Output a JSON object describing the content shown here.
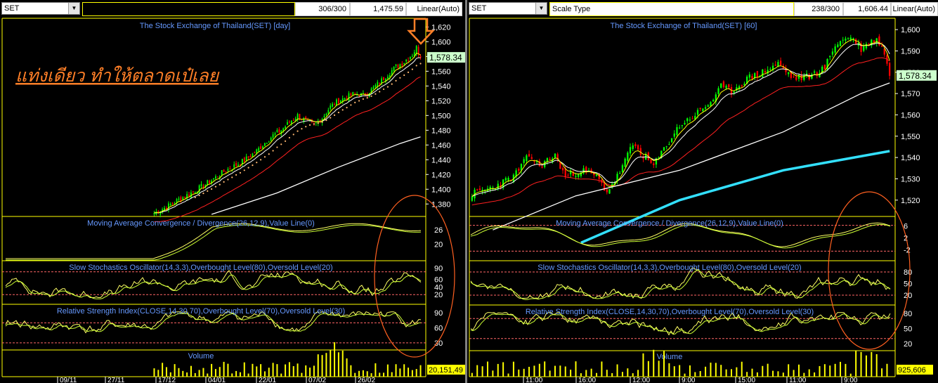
{
  "left": {
    "symbol": "SET",
    "records": "306/300",
    "last_value": "1,475.59",
    "scale": "Linear(Auto)",
    "title": "The Stock Exchange of Thailand(SET) [day]",
    "annotation": "แท่งเดียว ทำให้ตลาดเป๋เลย",
    "price_label": "1,578.34",
    "volume_label": "20,151,49",
    "macd_title": "Moving Average Convergence / Divergence(26,12,9),Value Line(0)",
    "stoch_title": "Slow Stochastics Oscillator(14,3,3),Overbought Level(80),Oversold Level(20)",
    "rsi_title": "Relative Strength Index(CLOSE,14,30,70),Overbought Level(70),Oversold Level(30)",
    "volume_title": "Volume",
    "x_labels": [
      "09/11",
      "27/11",
      "17/12",
      "04/01",
      "22/01",
      "07/02",
      "26/02"
    ]
  },
  "right": {
    "symbol": "SET",
    "scale_type": "Scale Type",
    "records": "238/300",
    "last_value": "1,606.44",
    "scale": "Linear(Auto)",
    "title": "The Stock Exchange of Thailand(SET) [60]",
    "price_label": "1,578.34",
    "volume_label": "925,606",
    "macd_title": "Moving Average Convergence / Divergence(26,12,9),Value Line(0)",
    "stoch_title": "Slow Stochastics Oscillator(14,3,3),Overbought Level(80),Oversold Level(20)",
    "rsi_title": "Relative Strength Index(CLOSE,14,30,70),Overbought Level(70),Oversold Level(30)",
    "volume_title": "Volume",
    "x_labels": [
      "11:00",
      "16:00",
      "12:00",
      "9:00",
      "15:00",
      "11:00",
      "9:00"
    ]
  },
  "colors": {
    "up_candle": "#00ff00",
    "down_candle": "#ff0000",
    "ma_short": "#ffff00",
    "ma_mid": "#ffffff",
    "ma_long_red": "#ff2020",
    "ma_200": "#ffffff",
    "ma_cyan": "#33e0ff",
    "grid_frame": "#ffff00",
    "title_text": "#6699ff",
    "axis_text": "#ffffff",
    "price_tag_bg": "#ccffcc",
    "volume_tag_bg": "#ffff00",
    "annotation": "#ff7f27",
    "oscillator_line": "#ffff66",
    "signal_line": "#ccff33",
    "level_line": "#ff6666"
  },
  "chart_data": [
    {
      "panel": "left",
      "type": "candlestick",
      "title": "The Stock Exchange of Thailand(SET) [day]",
      "x_labels": [
        "09/11",
        "27/11",
        "17/12",
        "04/01",
        "22/01",
        "07/02",
        "26/02"
      ],
      "y_ticks": [
        1380,
        1400,
        1420,
        1440,
        1460,
        1480,
        1500,
        1520,
        1540,
        1560,
        1580,
        1600,
        1620
      ],
      "ylim": [
        1365,
        1628
      ],
      "last_price": 1578.34,
      "close_path": [
        [
          0,
          1368
        ],
        [
          6,
          1376
        ],
        [
          12,
          1386
        ],
        [
          18,
          1395
        ],
        [
          24,
          1405
        ],
        [
          30,
          1416
        ],
        [
          34,
          1424
        ],
        [
          38,
          1430
        ],
        [
          42,
          1436
        ],
        [
          46,
          1443
        ],
        [
          50,
          1452
        ],
        [
          54,
          1463
        ],
        [
          58,
          1473
        ],
        [
          62,
          1480
        ],
        [
          66,
          1491
        ],
        [
          70,
          1500
        ],
        [
          74,
          1492
        ],
        [
          78,
          1487
        ],
        [
          82,
          1497
        ],
        [
          86,
          1512
        ],
        [
          90,
          1520
        ],
        [
          94,
          1525
        ],
        [
          98,
          1530
        ],
        [
          102,
          1527
        ],
        [
          106,
          1535
        ],
        [
          110,
          1545
        ],
        [
          114,
          1556
        ],
        [
          118,
          1566
        ],
        [
          122,
          1573
        ],
        [
          126,
          1583
        ],
        [
          128,
          1592
        ],
        [
          130,
          1578
        ]
      ],
      "n_bars": 131,
      "moving_averages": [
        "yellow",
        "white",
        "red",
        "white-long",
        "orange-dotted"
      ],
      "indicators": {
        "macd": {
          "y_ticks": [
            20,
            26
          ]
        },
        "stochastic": {
          "y_ticks": [
            20,
            40,
            60,
            90
          ],
          "overbought": 80,
          "oversold": 20
        },
        "rsi": {
          "y_ticks": [
            30,
            60,
            90
          ],
          "overbought": 70,
          "oversold": 30
        },
        "volume": {
          "last": "20,151,49"
        }
      }
    },
    {
      "panel": "right",
      "type": "candlestick",
      "title": "The Stock Exchange of Thailand(SET) [60]",
      "x_labels": [
        "11:00",
        "16:00",
        "12:00",
        "9:00",
        "15:00",
        "11:00",
        "9:00"
      ],
      "y_ticks": [
        1520,
        1530,
        1540,
        1550,
        1560,
        1570,
        1580,
        1590,
        1600
      ],
      "ylim": [
        1513,
        1604
      ],
      "last_price": 1578.34,
      "close_path": [
        [
          0,
          1523
        ],
        [
          8,
          1526
        ],
        [
          16,
          1531
        ],
        [
          22,
          1541
        ],
        [
          26,
          1536
        ],
        [
          32,
          1541
        ],
        [
          36,
          1531
        ],
        [
          42,
          1534
        ],
        [
          48,
          1531
        ],
        [
          52,
          1524
        ],
        [
          56,
          1531
        ],
        [
          62,
          1546
        ],
        [
          66,
          1541
        ],
        [
          70,
          1536
        ],
        [
          74,
          1544
        ],
        [
          80,
          1555
        ],
        [
          86,
          1560
        ],
        [
          92,
          1566
        ],
        [
          96,
          1573
        ],
        [
          100,
          1571
        ],
        [
          106,
          1577
        ],
        [
          112,
          1580
        ],
        [
          118,
          1584
        ],
        [
          124,
          1577
        ],
        [
          130,
          1578
        ],
        [
          136,
          1582
        ],
        [
          140,
          1593
        ],
        [
          146,
          1597
        ],
        [
          150,
          1591
        ],
        [
          156,
          1596
        ],
        [
          159,
          1589
        ],
        [
          161,
          1580
        ]
      ],
      "n_bars": 162,
      "moving_averages": [
        "yellow",
        "white",
        "red",
        "white-long",
        "cyan"
      ],
      "indicators": {
        "macd": {
          "y_ticks": [
            -2,
            2,
            6
          ]
        },
        "stochastic": {
          "y_ticks": [
            20,
            50,
            80
          ],
          "overbought": 80,
          "oversold": 20
        },
        "rsi": {
          "y_ticks": [
            20,
            50,
            80
          ],
          "overbought": 70,
          "oversold": 30
        },
        "volume": {
          "last": "925,606"
        }
      }
    }
  ]
}
